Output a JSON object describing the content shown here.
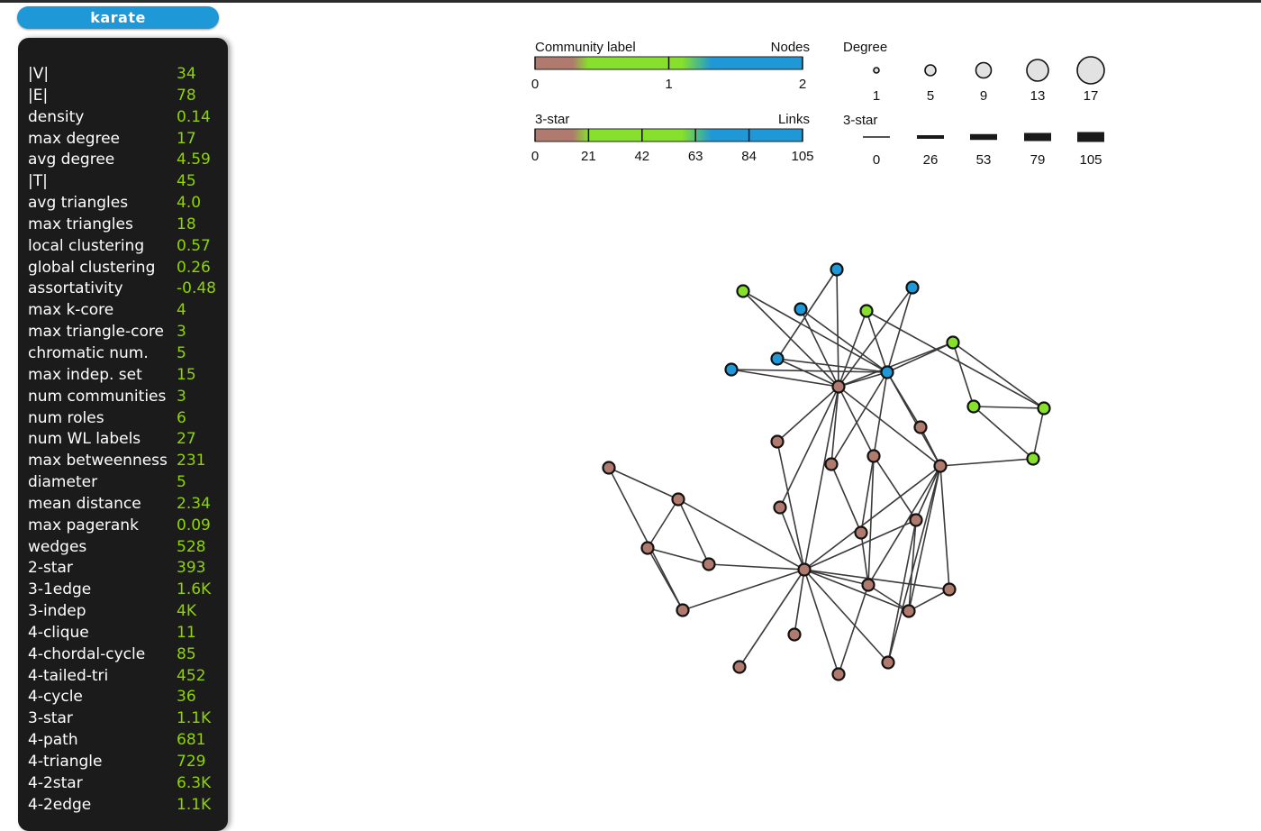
{
  "title": "karate",
  "stats": [
    {
      "label": "|V|",
      "value": "34"
    },
    {
      "label": "|E|",
      "value": "78"
    },
    {
      "label": "density",
      "value": "0.14"
    },
    {
      "label": "max degree",
      "value": "17"
    },
    {
      "label": "avg degree",
      "value": "4.59"
    },
    {
      "label": "|T|",
      "value": "45"
    },
    {
      "label": "avg triangles",
      "value": "4.0"
    },
    {
      "label": "max triangles",
      "value": "18"
    },
    {
      "label": "local clustering",
      "value": "0.57"
    },
    {
      "label": "global clustering",
      "value": "0.26"
    },
    {
      "label": "assortativity",
      "value": "-0.48"
    },
    {
      "label": "max k-core",
      "value": "4"
    },
    {
      "label": "max triangle-core",
      "value": "3"
    },
    {
      "label": "chromatic num.",
      "value": "5"
    },
    {
      "label": "max indep. set",
      "value": "15"
    },
    {
      "label": "num communities",
      "value": "3"
    },
    {
      "label": "num roles",
      "value": "6"
    },
    {
      "label": "num WL labels",
      "value": "27"
    },
    {
      "label": "max betweenness",
      "value": "231"
    },
    {
      "label": "diameter",
      "value": "5"
    },
    {
      "label": "mean distance",
      "value": "2.34"
    },
    {
      "label": "max pagerank",
      "value": "0.09"
    },
    {
      "label": "wedges",
      "value": "528"
    },
    {
      "label": "2-star",
      "value": "393"
    },
    {
      "label": "3-1edge",
      "value": "1.6K"
    },
    {
      "label": "3-indep",
      "value": "4K"
    },
    {
      "label": "4-clique",
      "value": "11"
    },
    {
      "label": "4-chordal-cycle",
      "value": "85"
    },
    {
      "label": "4-tailed-tri",
      "value": "452"
    },
    {
      "label": "4-cycle",
      "value": "36"
    },
    {
      "label": "3-star",
      "value": "1.1K"
    },
    {
      "label": "4-path",
      "value": "681"
    },
    {
      "label": "4-triangle",
      "value": "729"
    },
    {
      "label": "4-2star",
      "value": "6.3K"
    },
    {
      "label": "4-2edge",
      "value": "1.1K"
    }
  ],
  "legend": {
    "community": {
      "title": "Community label",
      "right_title": "Nodes",
      "ticks": [
        "0",
        "1",
        "2"
      ]
    },
    "node_metric": {
      "title": "3-star",
      "right_title": "Links",
      "ticks": [
        "0",
        "21",
        "42",
        "63",
        "84",
        "105"
      ]
    },
    "degree": {
      "title": "Degree",
      "ticks": [
        "1",
        "5",
        "9",
        "13",
        "17"
      ]
    },
    "link_metric": {
      "title": "3-star",
      "ticks": [
        "0",
        "26",
        "53",
        "79",
        "105"
      ]
    }
  },
  "colors": {
    "community_0": "#b07a6e",
    "community_1": "#86e02c",
    "community_2": "#1e98d6",
    "title_pill": "#1e98d6",
    "panel_bg": "#1b1b1b",
    "value_text": "#8fd400"
  }
}
